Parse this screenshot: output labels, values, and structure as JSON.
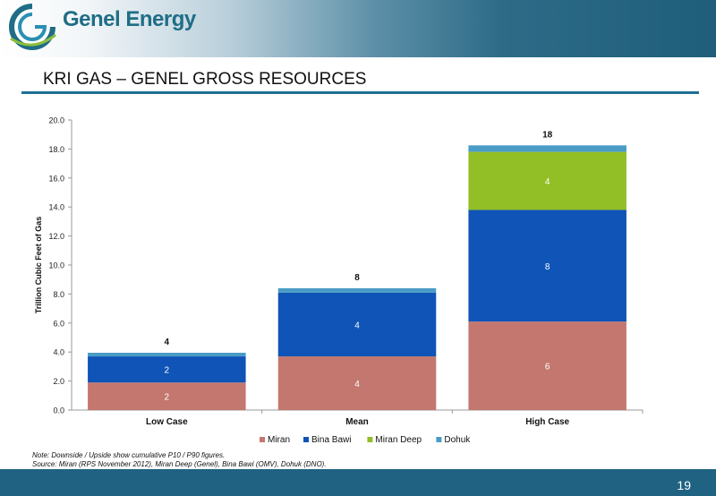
{
  "header": {
    "brand": "Genel Energy",
    "logo_name": "genel-energy-logo",
    "brand_color": "#1f6d86"
  },
  "slide": {
    "title": "KRI GAS – GENEL GROSS RESOURCES",
    "page_number": "19",
    "accent": "#1d6f95"
  },
  "notes": {
    "line1": "Note: Downside / Upside show cumulative P10 / P90 figures.",
    "line2": "Source: Miran (RPS November 2012), Miran Deep (Genel), Bina Bawi (OMV), Dohuk (DNO)."
  },
  "chart_data": {
    "type": "bar",
    "stacked": true,
    "categories": [
      "Low Case",
      "Mean",
      "High Case"
    ],
    "ylabel": "Trillion Cubic Feet of Gas",
    "ylim": [
      0,
      20
    ],
    "yticks": [
      "0.0",
      "2.0",
      "4.0",
      "6.0",
      "8.0",
      "10.0",
      "12.0",
      "14.0",
      "16.0",
      "18.0",
      "20.0"
    ],
    "grid": false,
    "legend_position": "bottom",
    "series": [
      {
        "name": "Miran",
        "color": "#c3776f",
        "values": [
          1.9,
          3.7,
          6.1
        ],
        "labels": [
          "2",
          "4",
          "6"
        ]
      },
      {
        "name": "Bina Bawi",
        "color": "#0f54b6",
        "values": [
          1.8,
          4.4,
          7.7
        ],
        "labels": [
          "2",
          "4",
          "8"
        ]
      },
      {
        "name": "Miran Deep",
        "color": "#92bf25",
        "values": [
          0,
          0,
          4.0
        ],
        "labels": [
          "",
          "",
          "4"
        ]
      },
      {
        "name": "Dohuk",
        "color": "#4a9cc6",
        "values": [
          0.25,
          0.3,
          0.45
        ],
        "labels": [
          "",
          "",
          ""
        ]
      }
    ],
    "totals": [
      "4",
      "8",
      "18"
    ]
  }
}
